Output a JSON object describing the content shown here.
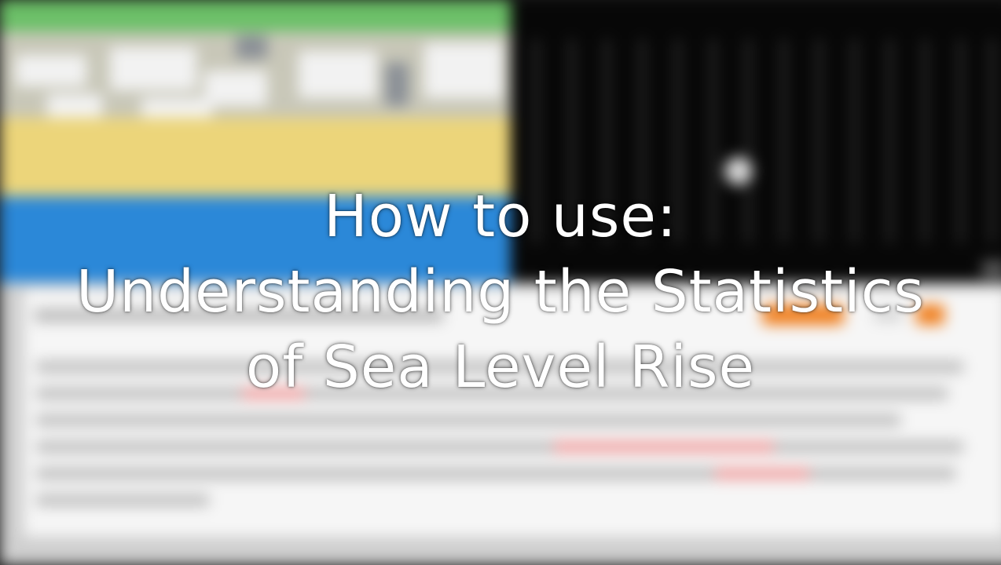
{
  "title_overlay": {
    "line1": "How to use:",
    "line2": "Understanding the Statistics",
    "line3": "of Sea Level Rise"
  },
  "background": {
    "scene_colors": {
      "grass": "#6cc068",
      "buildings": "#c8c7b8",
      "beach": "#ecd57a",
      "sea": "#2b88d8"
    },
    "chart_panel_color": "#070707",
    "info_panel": {
      "card_color": "#f6f6f6",
      "accent_button_color": "#f07f1e",
      "highlight_color": "#f0a0a0"
    }
  }
}
